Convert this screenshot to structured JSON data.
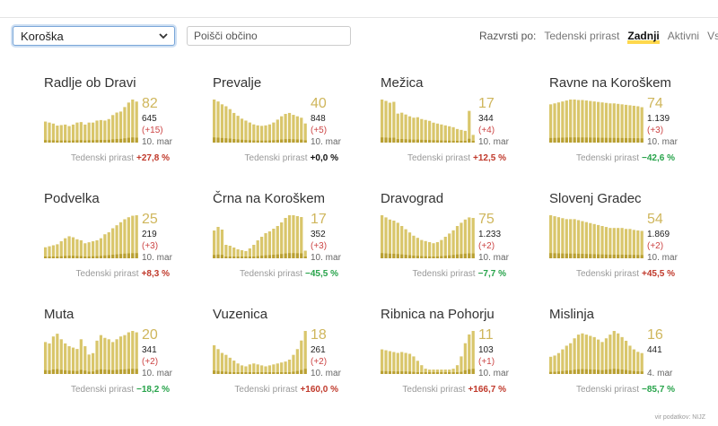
{
  "region_select": {
    "value": "Koroška"
  },
  "search": {
    "placeholder": "Poišči občino"
  },
  "sort": {
    "label": "Razvrsti po:",
    "options": [
      "Tedenski prirast",
      "Zadnji",
      "Aktivni",
      "Vsi"
    ],
    "active": "Zadnji"
  },
  "growth_label": "Tedenski prirast",
  "source": "vir podatkov: NIJZ",
  "colors": {
    "bar": "#d9c66b",
    "bar_dark": "#b9a032",
    "accent": "#ffd84d",
    "up": "#c0392b",
    "down": "#27a34a"
  },
  "municipalities": [
    {
      "name": "Radlje ob Dravi",
      "active": "82",
      "total": "645",
      "delta": "(+15)",
      "date": "10. mar",
      "growth": "+27,8 %",
      "trend": "up",
      "chart_data": {
        "type": "bar",
        "values": [
          42,
          40,
          38,
          34,
          35,
          36,
          33,
          36,
          40,
          41,
          36,
          40,
          40,
          44,
          45,
          44,
          47,
          55,
          60,
          62,
          71,
          80,
          86,
          82
        ]
      }
    },
    {
      "name": "Prevalje",
      "active": "40",
      "total": "848",
      "delta": "(+5)",
      "date": "10. mar",
      "growth": "+0,0 %",
      "trend": "zero",
      "chart_data": {
        "type": "bar",
        "values": [
          90,
          86,
          80,
          76,
          70,
          62,
          56,
          50,
          46,
          42,
          38,
          36,
          35,
          36,
          38,
          42,
          48,
          55,
          60,
          62,
          58,
          55,
          52,
          40
        ]
      }
    },
    {
      "name": "Mežica",
      "active": "17",
      "total": "344",
      "delta": "(+4)",
      "date": "10. mar",
      "growth": "+12,5 %",
      "trend": "up",
      "chart_data": {
        "type": "bar",
        "values": [
          95,
          92,
          88,
          90,
          64,
          66,
          62,
          58,
          55,
          56,
          52,
          50,
          48,
          44,
          42,
          40,
          38,
          36,
          34,
          30,
          28,
          26,
          70,
          17
        ]
      }
    },
    {
      "name": "Ravne na Koroškem",
      "active": "74",
      "total": "1.139",
      "delta": "(+3)",
      "date": "10. mar",
      "growth": "−42,6 %",
      "trend": "down",
      "chart_data": {
        "type": "bar",
        "values": [
          80,
          82,
          84,
          86,
          88,
          90,
          90,
          89,
          89,
          88,
          87,
          86,
          85,
          84,
          83,
          82,
          82,
          81,
          80,
          79,
          78,
          77,
          76,
          74
        ]
      }
    },
    {
      "name": "Podvelka",
      "active": "25",
      "total": "219",
      "delta": "(+3)",
      "date": "10. mar",
      "growth": "+8,3 %",
      "trend": "up",
      "chart_data": {
        "type": "bar",
        "values": [
          22,
          24,
          26,
          28,
          34,
          40,
          44,
          42,
          38,
          36,
          30,
          32,
          34,
          36,
          40,
          48,
          52,
          60,
          66,
          72,
          78,
          82,
          85,
          86
        ]
      }
    },
    {
      "name": "Črna na Koroškem",
      "active": "17",
      "total": "352",
      "delta": "(+3)",
      "date": "10. mar",
      "growth": "−45,5 %",
      "trend": "down",
      "chart_data": {
        "type": "bar",
        "values": [
          62,
          70,
          64,
          30,
          28,
          24,
          20,
          18,
          16,
          22,
          30,
          40,
          48,
          56,
          60,
          66,
          72,
          80,
          90,
          96,
          96,
          94,
          92,
          17
        ]
      }
    },
    {
      "name": "Dravograd",
      "active": "75",
      "total": "1.233",
      "delta": "(+2)",
      "date": "10. mar",
      "growth": "−7,7 %",
      "trend": "down",
      "chart_data": {
        "type": "bar",
        "values": [
          80,
          76,
          72,
          70,
          66,
          60,
          54,
          48,
          42,
          38,
          34,
          32,
          30,
          28,
          30,
          34,
          40,
          46,
          52,
          60,
          66,
          72,
          76,
          75
        ]
      }
    },
    {
      "name": "Slovenj Gradec",
      "active": "54",
      "total": "1.869",
      "delta": "(+2)",
      "date": "10. mar",
      "growth": "+45,5 %",
      "trend": "up",
      "chart_data": {
        "type": "bar",
        "values": [
          88,
          86,
          84,
          82,
          80,
          80,
          80,
          78,
          76,
          74,
          72,
          70,
          68,
          66,
          64,
          62,
          62,
          62,
          62,
          60,
          60,
          58,
          57,
          56
        ]
      }
    },
    {
      "name": "Muta",
      "active": "20",
      "total": "341",
      "delta": "(+2)",
      "date": "10. mar",
      "growth": "−18,2 %",
      "trend": "down",
      "chart_data": {
        "type": "bar",
        "values": [
          46,
          44,
          54,
          58,
          50,
          44,
          40,
          38,
          36,
          50,
          40,
          28,
          30,
          48,
          56,
          52,
          50,
          46,
          50,
          54,
          56,
          60,
          62,
          60
        ]
      }
    },
    {
      "name": "Vuzenica",
      "active": "18",
      "total": "261",
      "delta": "(+2)",
      "date": "10. mar",
      "growth": "+160,0 %",
      "trend": "up",
      "chart_data": {
        "type": "bar",
        "values": [
          60,
          52,
          44,
          40,
          34,
          28,
          22,
          18,
          16,
          20,
          22,
          20,
          18,
          16,
          18,
          20,
          22,
          24,
          26,
          30,
          40,
          52,
          70,
          90
        ]
      }
    },
    {
      "name": "Ribnica na Pohorju",
      "active": "11",
      "total": "103",
      "delta": "(+1)",
      "date": "10. mar",
      "growth": "+166,7 %",
      "trend": "up",
      "chart_data": {
        "type": "bar",
        "values": [
          56,
          54,
          52,
          50,
          48,
          50,
          48,
          46,
          40,
          30,
          20,
          12,
          10,
          10,
          10,
          10,
          10,
          10,
          12,
          20,
          40,
          70,
          90,
          98
        ]
      }
    },
    {
      "name": "Mislinja",
      "active": "16",
      "total": "441",
      "delta": "",
      "date": "4. mar",
      "growth": "−85,7 %",
      "trend": "down",
      "chart_data": {
        "type": "bar",
        "values": [
          28,
          30,
          34,
          40,
          46,
          50,
          58,
          64,
          66,
          64,
          62,
          60,
          56,
          52,
          58,
          64,
          70,
          66,
          60,
          54,
          46,
          40,
          36,
          34
        ]
      }
    }
  ]
}
